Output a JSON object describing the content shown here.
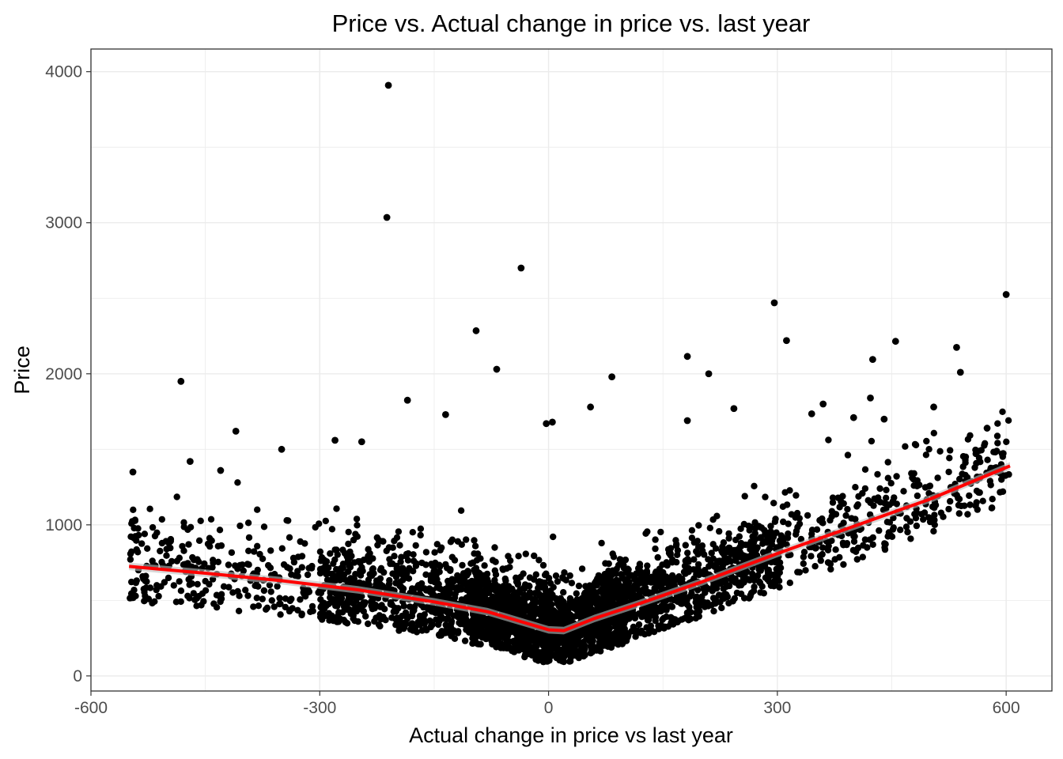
{
  "chart_data": {
    "type": "scatter",
    "title": "Price vs. Actual change in price vs. last year",
    "xlabel": "Actual change in price vs last year",
    "ylabel": "Price",
    "xlim": [
      -600,
      660
    ],
    "ylim": [
      -100,
      4150
    ],
    "x_ticks": [
      -600,
      -300,
      0,
      300,
      600
    ],
    "x_tick_labels": [
      "-600",
      "-300",
      "0",
      "300",
      "600"
    ],
    "y_ticks": [
      0,
      1000,
      2000,
      3000,
      4000
    ],
    "y_tick_labels": [
      "0",
      "1000",
      "2000",
      "3000",
      "4000"
    ],
    "grid": true,
    "theme": "bw",
    "colors": {
      "points": "#000000",
      "smooth_line": "#ff0000",
      "confidence_band": "#bebebe",
      "grid": "#ebebeb",
      "panel_border": "#333333"
    },
    "outliers": [
      {
        "x": -210,
        "y": 3910
      },
      {
        "x": -212,
        "y": 3035
      },
      {
        "x": -36,
        "y": 2700
      },
      {
        "x": -95,
        "y": 2285
      },
      {
        "x": -68,
        "y": 2030
      },
      {
        "x": -482,
        "y": 1950
      },
      {
        "x": 83,
        "y": 1980
      },
      {
        "x": 296,
        "y": 2470
      },
      {
        "x": 312,
        "y": 2220
      },
      {
        "x": 182,
        "y": 2115
      },
      {
        "x": 210,
        "y": 2000
      },
      {
        "x": 600,
        "y": 2525
      },
      {
        "x": 455,
        "y": 2215
      },
      {
        "x": 425,
        "y": 2095
      },
      {
        "x": 535,
        "y": 2175
      },
      {
        "x": 540,
        "y": 2010
      },
      {
        "x": -410,
        "y": 1620
      },
      {
        "x": -185,
        "y": 1825
      },
      {
        "x": -135,
        "y": 1730
      },
      {
        "x": 243,
        "y": 1770
      },
      {
        "x": 422,
        "y": 1840
      },
      {
        "x": 182,
        "y": 1690
      },
      {
        "x": 505,
        "y": 1780
      },
      {
        "x": 5,
        "y": 1680
      },
      {
        "x": -3,
        "y": 1670
      },
      {
        "x": 55,
        "y": 1780
      },
      {
        "x": 360,
        "y": 1800
      },
      {
        "x": 345,
        "y": 1735
      },
      {
        "x": 400,
        "y": 1710
      },
      {
        "x": 440,
        "y": 1700
      },
      {
        "x": 575,
        "y": 1640
      },
      {
        "x": -350,
        "y": 1500
      },
      {
        "x": -280,
        "y": 1560
      },
      {
        "x": -245,
        "y": 1550
      },
      {
        "x": -545,
        "y": 1350
      },
      {
        "x": -470,
        "y": 1420
      },
      {
        "x": -430,
        "y": 1360
      }
    ],
    "point_clusters": [
      {
        "x_min": -550,
        "x_max": -300,
        "y_center": 620,
        "y_spread": 300,
        "count": 260
      },
      {
        "x_min": -300,
        "x_max": -100,
        "y_center": 520,
        "y_spread": 270,
        "count": 650
      },
      {
        "x_min": -100,
        "x_max": 100,
        "y_center": 440,
        "y_spread": 230,
        "count": 1600
      },
      {
        "x_min": 100,
        "x_max": 300,
        "y_center": 600,
        "y_spread": 240,
        "count": 650
      },
      {
        "x_min": 300,
        "x_max": 605,
        "y_center": 960,
        "y_spread": 260,
        "count": 330
      }
    ],
    "smooth_line": {
      "x": [
        -550,
        -450,
        -350,
        -250,
        -150,
        -80,
        -30,
        0,
        20,
        60,
        120,
        200,
        300,
        400,
        500,
        605
      ],
      "y": [
        725,
        680,
        630,
        570,
        490,
        425,
        350,
        305,
        300,
        380,
        480,
        620,
        810,
        990,
        1170,
        1390
      ]
    }
  }
}
